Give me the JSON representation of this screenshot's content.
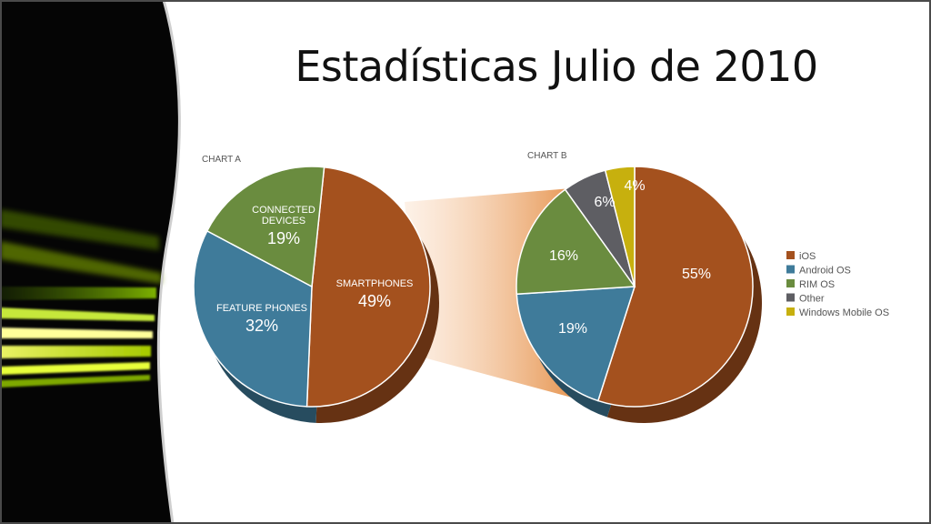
{
  "title": "Estadísticas Julio de 2010",
  "chart_data": [
    {
      "type": "pie",
      "title": "CHART A",
      "slices": [
        {
          "label": "SMARTPHONES",
          "value": 49,
          "value_label": "49%",
          "color": "#a4511e"
        },
        {
          "label": "FEATURE PHONES",
          "value": 32,
          "value_label": "32%",
          "color": "#3f7b9a"
        },
        {
          "label": "CONNECTED DEVICES",
          "value": 19,
          "value_label": "19%",
          "color": "#6a8c3f"
        }
      ]
    },
    {
      "type": "pie",
      "title": "CHART B",
      "slices": [
        {
          "label": "iOS",
          "value": 55,
          "value_label": "55%",
          "color": "#a4511e"
        },
        {
          "label": "Android OS",
          "value": 19,
          "value_label": "19%",
          "color": "#3f7b9a"
        },
        {
          "label": "RIM OS",
          "value": 16,
          "value_label": "16%",
          "color": "#6a8c3f"
        },
        {
          "label": "Other",
          "value": 6,
          "value_label": "6%",
          "color": "#5e5e63"
        },
        {
          "label": "Windows Mobile OS",
          "value": 4,
          "value_label": "4%",
          "color": "#c7b00e"
        }
      ],
      "legend": "right"
    }
  ]
}
